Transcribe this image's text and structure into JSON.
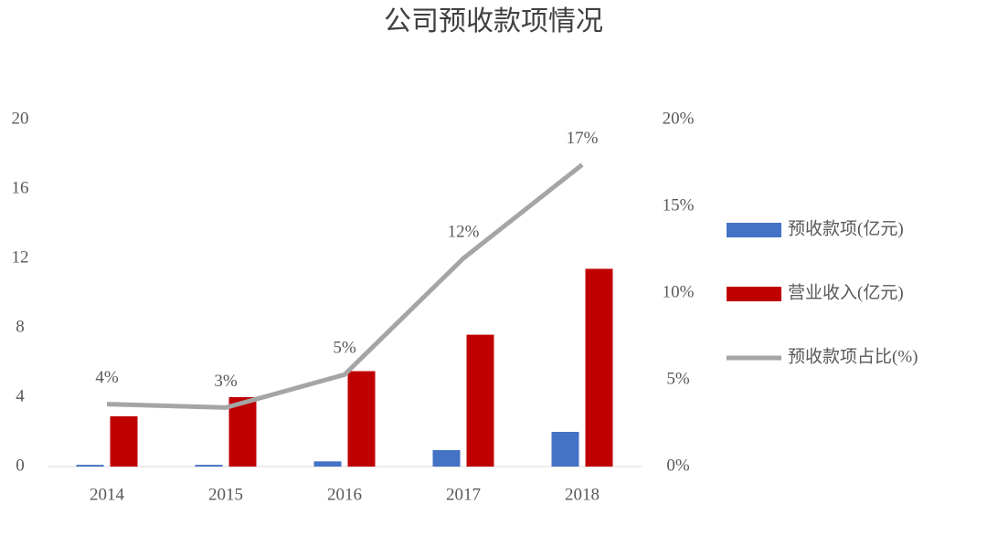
{
  "chart_data": {
    "type": "combo",
    "title": "公司预收款项情况",
    "categories": [
      "2014",
      "2015",
      "2016",
      "2017",
      "2018"
    ],
    "series": [
      {
        "name": "预收款项(亿元)",
        "type": "bar",
        "color": "#4472c4",
        "values": [
          0.1,
          0.1,
          0.3,
          0.95,
          2.0
        ]
      },
      {
        "name": "营业收入(亿元)",
        "type": "bar",
        "color": "#c00000",
        "values": [
          2.9,
          4.0,
          5.5,
          7.6,
          11.4
        ]
      },
      {
        "name": "预收款项占比(%)",
        "type": "line",
        "axis": "y2",
        "color": "#a5a5a5",
        "values": [
          3.6,
          3.4,
          5.3,
          12.0,
          17.4
        ],
        "value_labels": [
          "4%",
          "3%",
          "5%",
          "12%",
          "17%"
        ]
      }
    ],
    "ylim": [
      0,
      20
    ],
    "yticks": [
      0,
      4,
      8,
      12,
      16,
      20
    ],
    "y2lim": [
      0,
      20
    ],
    "y2ticks": [
      {
        "value": 0,
        "label": "0%"
      },
      {
        "value": 5,
        "label": "5%"
      },
      {
        "value": 10,
        "label": "10%"
      },
      {
        "value": 15,
        "label": "15%"
      },
      {
        "value": 20,
        "label": "20%"
      }
    ],
    "grid": false,
    "legend": "right"
  }
}
